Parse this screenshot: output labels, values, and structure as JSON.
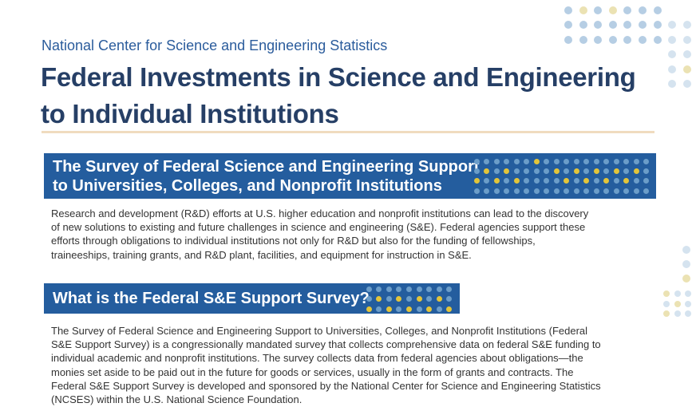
{
  "header": {
    "organization": "National Center for Science and Engineering Statistics",
    "title_line1": "Federal Investments in Science and Engineering",
    "title_line2": "to Individual Institutions"
  },
  "section1": {
    "heading_line1": "The Survey of Federal Science and Engineering Support",
    "heading_line2": "to Universities, Colleges, and Nonprofit Institutions",
    "body": "Research and development (R&D) efforts at U.S. higher education and nonprofit institutions can lead to the discovery of new solutions to existing and future challenges in science and engineering (S&E). Federal agencies support these efforts through obligations to individual institutions not only for R&D but also for the funding of fellowships, traineeships, training grants, and R&D plant, facilities, and equipment for instruction in S&E."
  },
  "section2": {
    "heading": "What is the Federal S&E Support Survey?",
    "body": "The Survey of Federal Science and Engineering Support to Universities, Colleges, and Nonprofit Institutions (Federal S&E Support Survey) is a congressionally mandated survey that collects comprehensive data on federal S&E funding to individual academic and nonprofit institutions. The survey collects data from federal agencies about obligations—the monies set aside to be paid out in the future for goods or services, usually in the form of grants and contracts. The Federal S&E Support Survey is developed and sponsored by the National Center for Science and Engineering Statistics (NCSES) within the U.S. National Science Foundation."
  },
  "colors": {
    "title": "#263f66",
    "organization": "#2b5c9c",
    "banner": "#245d9e",
    "rule": "#f0dcbf",
    "dot_blue": "#b6cee4",
    "dot_blue_light": "#d5e3ef",
    "dot_yellow_light": "#ebe2b3",
    "dot_banner_blue": "#6b9dc9",
    "dot_banner_yellow": "#e2c43a"
  }
}
